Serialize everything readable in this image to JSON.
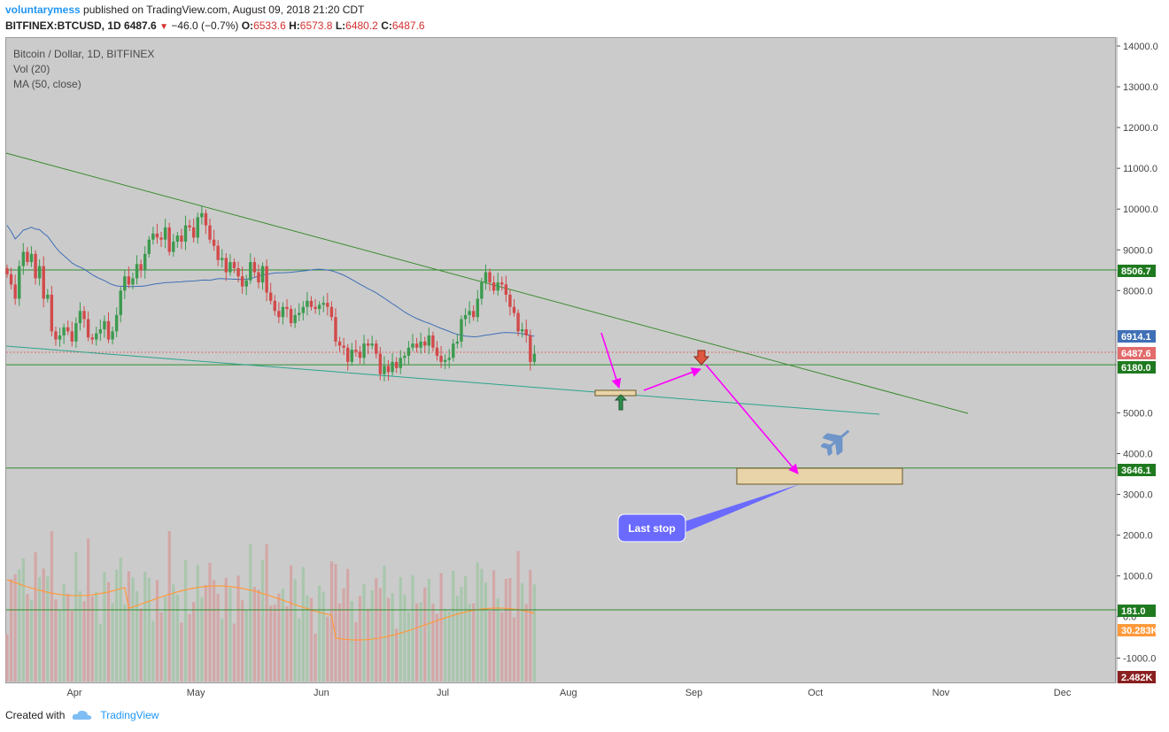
{
  "header": {
    "author": "voluntarymess",
    "published_text": "published on TradingView.com, August 09, 2018 21:20 CDT",
    "symbol": "BITFINEX:BTCUSD, 1D",
    "last": "6487.6",
    "arrow": "▼",
    "change": "−46.0 (−0.7%)",
    "o_label": "O:",
    "o_value": "6533.6",
    "h_label": "H:",
    "h_value": "6573.8",
    "l_label": "L:",
    "l_value": "6480.2",
    "c_label": "C:",
    "c_value": "6487.6"
  },
  "legend": {
    "title": "Bitcoin / Dollar, 1D, BITFINEX",
    "vol": "Vol (20)",
    "ma": "MA (50, close)"
  },
  "footer": {
    "created_with": "Created with",
    "brand": "TradingView",
    "logo_icon": "tradingview-cloud-icon"
  },
  "annotation": {
    "callout": "Last stop",
    "plane_icon": "airplane-icon",
    "up_arrow_icon": "green-up-arrow-icon",
    "down_arrow_icon": "red-down-arrow-icon"
  },
  "colors": {
    "background": "#cbcbcb",
    "up_candle": "#3c9a4e",
    "down_candle": "#d24a4a",
    "ma_line": "#3f6fb6",
    "vol_ma_line": "#ff9a3c",
    "level_line": "#2f8c2f",
    "channel_line": "#2aa38a",
    "path_arrow": "#ff00ff",
    "callout": "#6a6aff",
    "zone": "#e8d4a8",
    "price_badge": "#e26b6b",
    "ma_badge": "#3f6fb6",
    "level_badge": "#1f7a1f"
  },
  "chart_data": {
    "type": "candlestick",
    "symbol": "BITFINEX:BTCUSD",
    "interval": "1D",
    "y_axis": {
      "ticks": [
        "14000.0",
        "13000.0",
        "12000.0",
        "11000.0",
        "10000.0",
        "9000.0",
        "8000.0",
        "5000.0",
        "4000.0",
        "3000.0",
        "2000.0",
        "1000.0",
        "0.0",
        "-1000.0"
      ],
      "ylim": [
        -1000,
        14000
      ]
    },
    "x_axis": {
      "ticks": [
        {
          "label": "Apr",
          "date": "2018-04-01"
        },
        {
          "label": "May",
          "date": "2018-05-01"
        },
        {
          "label": "Jun",
          "date": "2018-06-01"
        },
        {
          "label": "Jul",
          "date": "2018-07-01"
        },
        {
          "label": "Aug",
          "date": "2018-08-01"
        },
        {
          "label": "Sep",
          "date": "2018-09-01"
        },
        {
          "label": "Oct",
          "date": "2018-10-01"
        },
        {
          "label": "Nov",
          "date": "2018-11-01"
        },
        {
          "label": "Dec",
          "date": "2018-12-01"
        }
      ]
    },
    "badges": [
      {
        "label": "8506.7",
        "value": 8506.7,
        "kind": "level"
      },
      {
        "label": "6914.1",
        "value": 6914.1,
        "kind": "ma"
      },
      {
        "label": "6487.6",
        "value": 6487.6,
        "kind": "price"
      },
      {
        "label": "6180.0",
        "value": 6180.0,
        "kind": "level"
      },
      {
        "label": "3646.1",
        "value": 3646.1,
        "kind": "level"
      },
      {
        "label": "181.0",
        "value": 181.0,
        "kind": "level"
      },
      {
        "label": "30.283K",
        "value": "30.283K",
        "kind": "vol_ma"
      },
      {
        "label": "2.482K",
        "value": "2.482K",
        "kind": "volume"
      }
    ],
    "horizontal_levels": [
      8506.7,
      6180.0,
      3646.1,
      181.0
    ],
    "last_price_line": 6487.6,
    "closes": [
      8400,
      8150,
      7800,
      8600,
      8950,
      8700,
      8900,
      8300,
      8600,
      7800,
      7900,
      7000,
      6800,
      6900,
      7100,
      7000,
      6750,
      7200,
      7500,
      7300,
      6850,
      6800,
      6950,
      7050,
      7250,
      6800,
      7000,
      7400,
      8000,
      8350,
      8150,
      8300,
      8650,
      8500,
      8900,
      9250,
      9400,
      9300,
      9250,
      9550,
      8950,
      9200,
      9350,
      9200,
      9600,
      9550,
      9300,
      9800,
      9900,
      9600,
      9250,
      9100,
      8750,
      8800,
      8450,
      8700,
      8550,
      8350,
      8100,
      8250,
      8700,
      8450,
      8200,
      8600,
      7950,
      7750,
      7500,
      7350,
      7600,
      7550,
      7200,
      7400,
      7450,
      7600,
      7750,
      7600,
      7550,
      7650,
      7700,
      7600,
      7350,
      6750,
      6650,
      6600,
      6250,
      6550,
      6500,
      6350,
      6700,
      6650,
      6700,
      6450,
      5950,
      6150,
      6000,
      6250,
      6100,
      6350,
      6400,
      6600,
      6700,
      6600,
      6750,
      6650,
      6900,
      6600,
      6400,
      6250,
      6300,
      6350,
      6700,
      6750,
      7300,
      7400,
      7500,
      7350,
      7800,
      8200,
      8450,
      8200,
      8000,
      8200,
      8150,
      7900,
      7600,
      7450,
      7000,
      7050,
      6900,
      6250,
      6450
    ]
  }
}
